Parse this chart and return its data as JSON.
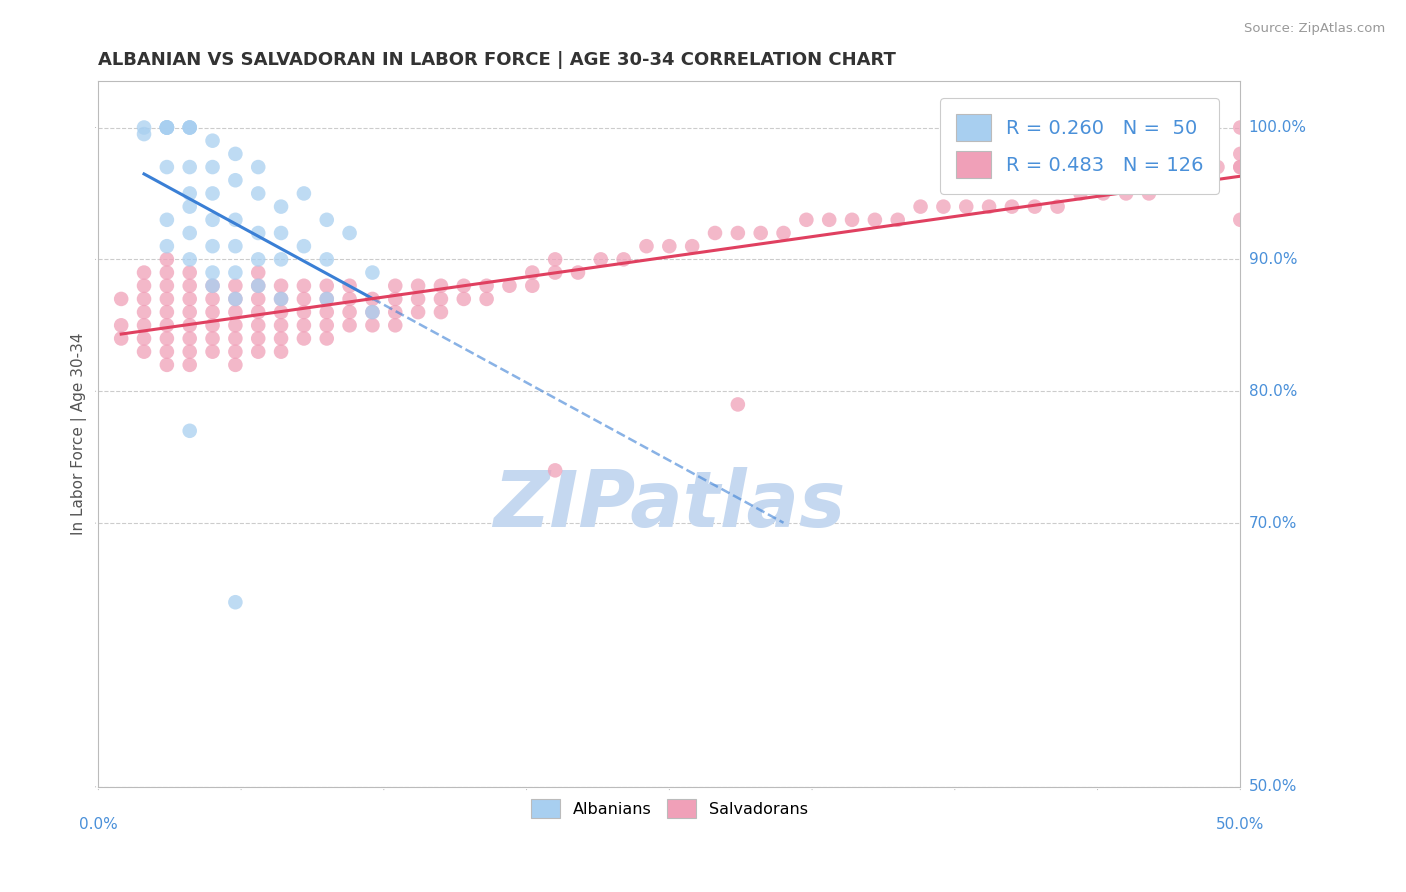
{
  "title": "ALBANIAN VS SALVADORAN IN LABOR FORCE | AGE 30-34 CORRELATION CHART",
  "source": "Source: ZipAtlas.com",
  "ylabel": "In Labor Force | Age 30-34",
  "xlim": [
    0.0,
    0.5
  ],
  "ylim": [
    0.5,
    1.035
  ],
  "albanian_color": "#a8cff0",
  "salvadoran_color": "#f0a0b8",
  "albanian_line_color": "#3a7fd5",
  "salvadoran_line_color": "#e04060",
  "watermark_color": "#c5d8f0",
  "legend_label1": "R = 0.260   N =  50",
  "legend_label2": "R = 0.483   N = 126",
  "background_color": "#ffffff",
  "grid_color": "#cccccc",
  "label_color": "#4a90d9",
  "title_color": "#333333",
  "source_color": "#999999",
  "y_tick_vals": [
    0.5,
    0.7,
    0.8,
    0.9,
    1.0
  ],
  "y_tick_labels": [
    "50.0%",
    "70.0%",
    "80.0%",
    "90.0%",
    "100.0%"
  ],
  "alb_x": [
    0.02,
    0.02,
    0.03,
    0.03,
    0.03,
    0.03,
    0.03,
    0.03,
    0.03,
    0.03,
    0.04,
    0.04,
    0.04,
    0.04,
    0.04,
    0.04,
    0.04,
    0.04,
    0.05,
    0.05,
    0.05,
    0.05,
    0.05,
    0.05,
    0.05,
    0.06,
    0.06,
    0.06,
    0.06,
    0.06,
    0.06,
    0.07,
    0.07,
    0.07,
    0.07,
    0.07,
    0.08,
    0.08,
    0.08,
    0.08,
    0.09,
    0.09,
    0.1,
    0.1,
    0.1,
    0.11,
    0.12,
    0.12,
    0.04,
    0.06
  ],
  "alb_y": [
    0.995,
    1.0,
    1.0,
    1.0,
    1.0,
    1.0,
    1.0,
    0.97,
    0.93,
    0.91,
    1.0,
    1.0,
    1.0,
    0.97,
    0.95,
    0.94,
    0.92,
    0.9,
    0.99,
    0.97,
    0.95,
    0.93,
    0.91,
    0.89,
    0.88,
    0.98,
    0.96,
    0.93,
    0.91,
    0.89,
    0.87,
    0.97,
    0.95,
    0.92,
    0.9,
    0.88,
    0.94,
    0.92,
    0.9,
    0.87,
    0.95,
    0.91,
    0.93,
    0.9,
    0.87,
    0.92,
    0.89,
    0.86,
    0.77,
    0.64
  ],
  "sal_x": [
    0.01,
    0.01,
    0.01,
    0.02,
    0.02,
    0.02,
    0.02,
    0.02,
    0.02,
    0.02,
    0.03,
    0.03,
    0.03,
    0.03,
    0.03,
    0.03,
    0.03,
    0.03,
    0.03,
    0.04,
    0.04,
    0.04,
    0.04,
    0.04,
    0.04,
    0.04,
    0.04,
    0.05,
    0.05,
    0.05,
    0.05,
    0.05,
    0.05,
    0.06,
    0.06,
    0.06,
    0.06,
    0.06,
    0.06,
    0.06,
    0.07,
    0.07,
    0.07,
    0.07,
    0.07,
    0.07,
    0.07,
    0.08,
    0.08,
    0.08,
    0.08,
    0.08,
    0.08,
    0.09,
    0.09,
    0.09,
    0.09,
    0.09,
    0.1,
    0.1,
    0.1,
    0.1,
    0.1,
    0.11,
    0.11,
    0.11,
    0.11,
    0.12,
    0.12,
    0.12,
    0.13,
    0.13,
    0.13,
    0.13,
    0.14,
    0.14,
    0.14,
    0.15,
    0.15,
    0.15,
    0.16,
    0.16,
    0.17,
    0.17,
    0.18,
    0.19,
    0.19,
    0.2,
    0.2,
    0.21,
    0.22,
    0.23,
    0.24,
    0.25,
    0.26,
    0.27,
    0.28,
    0.29,
    0.3,
    0.31,
    0.32,
    0.33,
    0.34,
    0.35,
    0.36,
    0.37,
    0.38,
    0.39,
    0.4,
    0.41,
    0.42,
    0.43,
    0.44,
    0.45,
    0.46,
    0.47,
    0.48,
    0.49,
    0.5,
    0.5,
    0.28,
    0.5,
    0.2,
    0.5,
    0.48,
    0.5
  ],
  "sal_y": [
    0.85,
    0.87,
    0.84,
    0.83,
    0.85,
    0.87,
    0.88,
    0.84,
    0.86,
    0.89,
    0.82,
    0.84,
    0.85,
    0.86,
    0.87,
    0.88,
    0.89,
    0.9,
    0.83,
    0.82,
    0.83,
    0.84,
    0.85,
    0.86,
    0.87,
    0.88,
    0.89,
    0.83,
    0.84,
    0.85,
    0.86,
    0.87,
    0.88,
    0.82,
    0.83,
    0.84,
    0.85,
    0.86,
    0.87,
    0.88,
    0.83,
    0.84,
    0.85,
    0.86,
    0.87,
    0.88,
    0.89,
    0.83,
    0.84,
    0.85,
    0.86,
    0.87,
    0.88,
    0.84,
    0.85,
    0.86,
    0.87,
    0.88,
    0.84,
    0.85,
    0.86,
    0.87,
    0.88,
    0.85,
    0.86,
    0.87,
    0.88,
    0.85,
    0.86,
    0.87,
    0.85,
    0.86,
    0.87,
    0.88,
    0.86,
    0.87,
    0.88,
    0.86,
    0.87,
    0.88,
    0.87,
    0.88,
    0.87,
    0.88,
    0.88,
    0.88,
    0.89,
    0.89,
    0.9,
    0.89,
    0.9,
    0.9,
    0.91,
    0.91,
    0.91,
    0.92,
    0.92,
    0.92,
    0.92,
    0.93,
    0.93,
    0.93,
    0.93,
    0.93,
    0.94,
    0.94,
    0.94,
    0.94,
    0.94,
    0.94,
    0.94,
    0.95,
    0.95,
    0.95,
    0.95,
    0.96,
    0.96,
    0.97,
    0.97,
    0.97,
    0.79,
    1.0,
    0.74,
    0.93,
    0.99,
    0.98
  ]
}
